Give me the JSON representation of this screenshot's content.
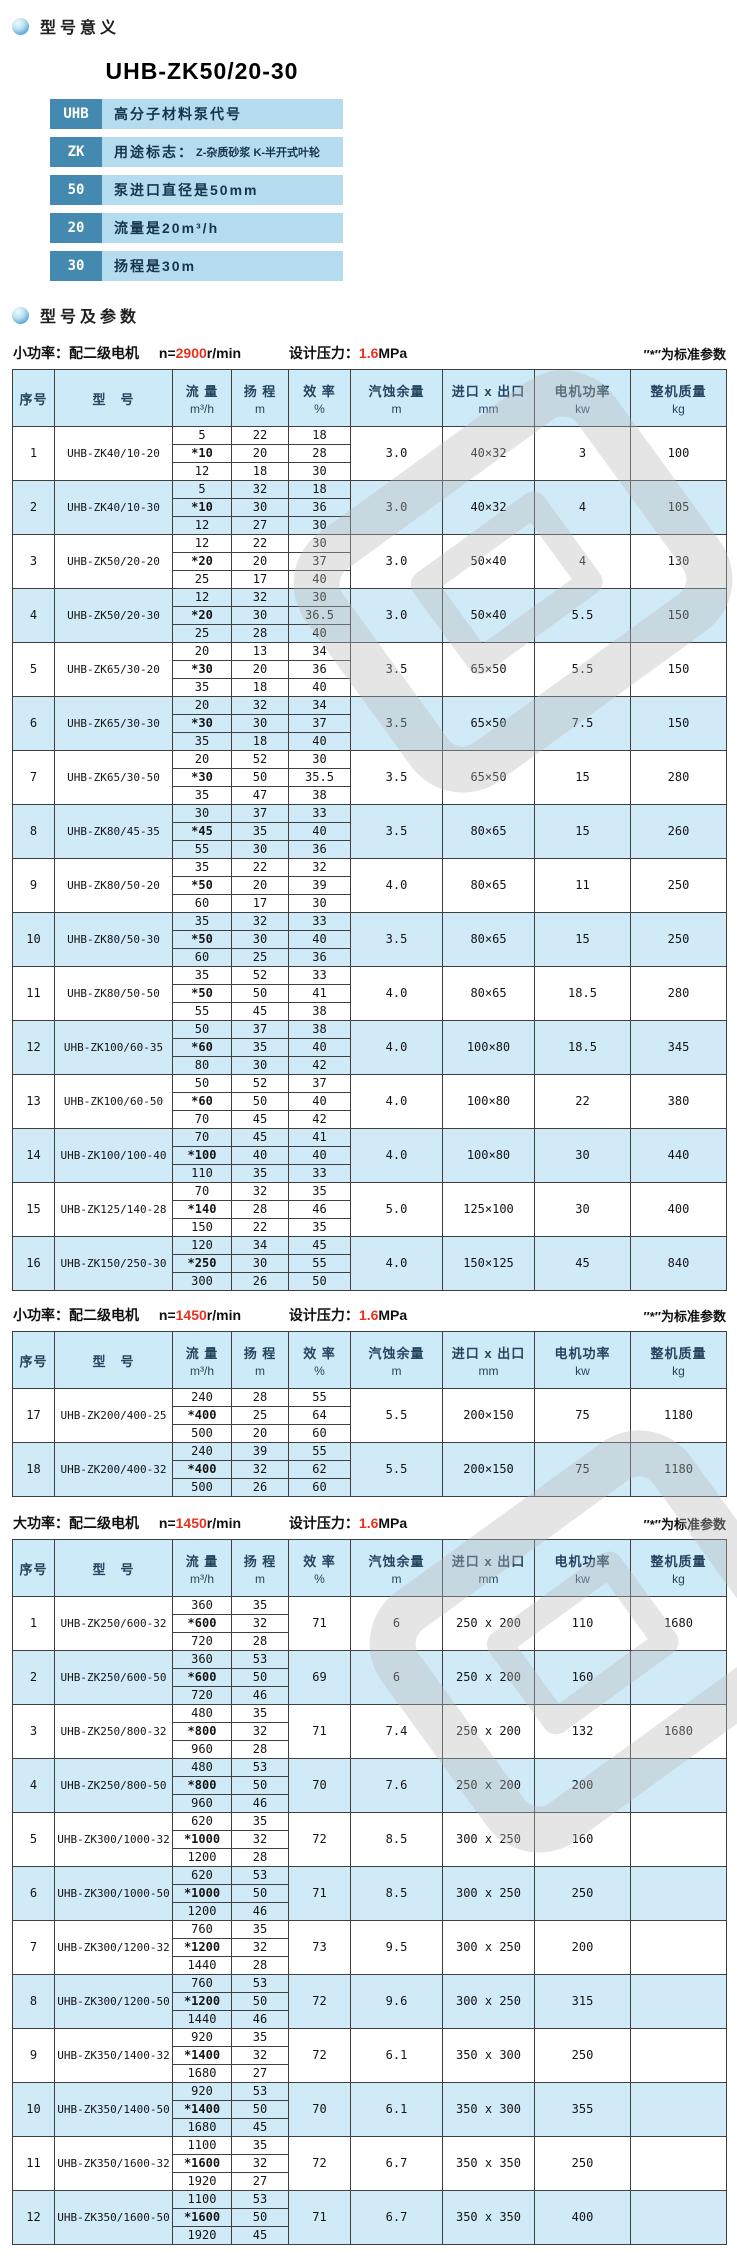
{
  "colors": {
    "accent_red": "#e8321e",
    "header_bg": "#cdeaf8",
    "row_alt_bg": "#d0eaf8",
    "legend_code_bg": "#4389b0",
    "legend_desc_bg": "#b5dcee",
    "table_border": "#3f3f3f"
  },
  "section1_title": "型号意义",
  "model_title": "UHB-ZK50/20-30",
  "legend": {
    "rows": [
      {
        "code": "UHB",
        "desc": "高分子材料泵代号"
      },
      {
        "code": "ZK",
        "desc": "用途标志：",
        "small": "Z-杂质砂浆 K-半开式叶轮"
      },
      {
        "code": "50",
        "desc": "泵进口直径是50mm"
      },
      {
        "code": "20",
        "desc": "流量是20m³/h"
      },
      {
        "code": "30",
        "desc": "扬程是30m"
      }
    ]
  },
  "section2_title": "型号及参数",
  "table_headers": [
    {
      "t": "序号"
    },
    {
      "t": "型　号"
    },
    {
      "t": "流 量",
      "u": "m³/h"
    },
    {
      "t": "扬 程",
      "u": "m"
    },
    {
      "t": "效 率",
      "u": "%"
    },
    {
      "t": "汽蚀余量",
      "u": "m"
    },
    {
      "t": "进口 x 出口",
      "u": "mm"
    },
    {
      "t": "电机功率",
      "u": "kw"
    },
    {
      "t": "整机质量",
      "u": "kg"
    }
  ],
  "tables": [
    {
      "caption": {
        "prefix": "小功率：配二级电机",
        "n_label": "n=",
        "n_value": "2900",
        "n_unit": "r/min",
        "p_label": "设计压力：",
        "p_value": "1.6",
        "p_unit": "MPa",
        "note": "″*″为标准参数"
      },
      "rows": [
        {
          "no": "1",
          "model": "UHB-ZK40/10-20",
          "flow": [
            "5",
            "*10",
            "12"
          ],
          "head": [
            "22",
            "20",
            "18"
          ],
          "eff": [
            "18",
            "28",
            "30"
          ],
          "npsh": "3.0",
          "ports": "40×32",
          "power": "3",
          "weight": "100"
        },
        {
          "no": "2",
          "model": "UHB-ZK40/10-30",
          "flow": [
            "5",
            "*10",
            "12"
          ],
          "head": [
            "32",
            "30",
            "27"
          ],
          "eff": [
            "18",
            "36",
            "30"
          ],
          "npsh": "3.0",
          "ports": "40×32",
          "power": "4",
          "weight": "105"
        },
        {
          "no": "3",
          "model": "UHB-ZK50/20-20",
          "flow": [
            "12",
            "*20",
            "25"
          ],
          "head": [
            "22",
            "20",
            "17"
          ],
          "eff": [
            "30",
            "37",
            "40"
          ],
          "npsh": "3.0",
          "ports": "50×40",
          "power": "4",
          "weight": "130"
        },
        {
          "no": "4",
          "model": "UHB-ZK50/20-30",
          "flow": [
            "12",
            "*20",
            "25"
          ],
          "head": [
            "32",
            "30",
            "28"
          ],
          "eff": [
            "30",
            "36.5",
            "40"
          ],
          "npsh": "3.0",
          "ports": "50×40",
          "power": "5.5",
          "weight": "150"
        },
        {
          "no": "5",
          "model": "UHB-ZK65/30-20",
          "flow": [
            "20",
            "*30",
            "35"
          ],
          "head": [
            "13",
            "20",
            "18"
          ],
          "eff": [
            "34",
            "36",
            "40"
          ],
          "npsh": "3.5",
          "ports": "65×50",
          "power": "5.5",
          "weight": "150"
        },
        {
          "no": "6",
          "model": "UHB-ZK65/30-30",
          "flow": [
            "20",
            "*30",
            "35"
          ],
          "head": [
            "32",
            "30",
            "18"
          ],
          "eff": [
            "34",
            "37",
            "40"
          ],
          "npsh": "3.5",
          "ports": "65×50",
          "power": "7.5",
          "weight": "150"
        },
        {
          "no": "7",
          "model": "UHB-ZK65/30-50",
          "flow": [
            "20",
            "*30",
            "35"
          ],
          "head": [
            "52",
            "50",
            "47"
          ],
          "eff": [
            "30",
            "35.5",
            "38"
          ],
          "npsh": "3.5",
          "ports": "65×50",
          "power": "15",
          "weight": "280"
        },
        {
          "no": "8",
          "model": "UHB-ZK80/45-35",
          "flow": [
            "30",
            "*45",
            "55"
          ],
          "head": [
            "37",
            "35",
            "30"
          ],
          "eff": [
            "33",
            "40",
            "36"
          ],
          "npsh": "3.5",
          "ports": "80×65",
          "power": "15",
          "weight": "260"
        },
        {
          "no": "9",
          "model": "UHB-ZK80/50-20",
          "flow": [
            "35",
            "*50",
            "60"
          ],
          "head": [
            "22",
            "20",
            "17"
          ],
          "eff": [
            "32",
            "39",
            "30"
          ],
          "npsh": "4.0",
          "ports": "80×65",
          "power": "11",
          "weight": "250"
        },
        {
          "no": "10",
          "model": "UHB-ZK80/50-30",
          "flow": [
            "35",
            "*50",
            "60"
          ],
          "head": [
            "32",
            "30",
            "25"
          ],
          "eff": [
            "33",
            "40",
            "36"
          ],
          "npsh": "3.5",
          "ports": "80×65",
          "power": "15",
          "weight": "250"
        },
        {
          "no": "11",
          "model": "UHB-ZK80/50-50",
          "flow": [
            "35",
            "*50",
            "55"
          ],
          "head": [
            "52",
            "50",
            "45"
          ],
          "eff": [
            "33",
            "41",
            "38"
          ],
          "npsh": "4.0",
          "ports": "80×65",
          "power": "18.5",
          "weight": "280"
        },
        {
          "no": "12",
          "model": "UHB-ZK100/60-35",
          "flow": [
            "50",
            "*60",
            "80"
          ],
          "head": [
            "37",
            "35",
            "30"
          ],
          "eff": [
            "38",
            "40",
            "42"
          ],
          "npsh": "4.0",
          "ports": "100×80",
          "power": "18.5",
          "weight": "345"
        },
        {
          "no": "13",
          "model": "UHB-ZK100/60-50",
          "flow": [
            "50",
            "*60",
            "70"
          ],
          "head": [
            "52",
            "50",
            "45"
          ],
          "eff": [
            "37",
            "40",
            "42"
          ],
          "npsh": "4.0",
          "ports": "100×80",
          "power": "22",
          "weight": "380"
        },
        {
          "no": "14",
          "model": "UHB-ZK100/100-40",
          "flow": [
            "70",
            "*100",
            "110"
          ],
          "head": [
            "45",
            "40",
            "35"
          ],
          "eff": [
            "41",
            "40",
            "33"
          ],
          "npsh": "4.0",
          "ports": "100×80",
          "power": "30",
          "weight": "440"
        },
        {
          "no": "15",
          "model": "UHB-ZK125/140-28",
          "flow": [
            "70",
            "*140",
            "150"
          ],
          "head": [
            "32",
            "28",
            "22"
          ],
          "eff": [
            "35",
            "46",
            "35"
          ],
          "npsh": "5.0",
          "ports": "125×100",
          "power": "30",
          "weight": "400"
        },
        {
          "no": "16",
          "model": "UHB-ZK150/250-30",
          "flow": [
            "120",
            "*250",
            "300"
          ],
          "head": [
            "34",
            "30",
            "26"
          ],
          "eff": [
            "45",
            "55",
            "50"
          ],
          "npsh": "4.0",
          "ports": "150×125",
          "power": "45",
          "weight": "840"
        }
      ]
    },
    {
      "caption": {
        "prefix": "小功率：配二级电机",
        "n_label": "n=",
        "n_value": "1450",
        "n_unit": "r/min",
        "p_label": "设计压力：",
        "p_value": "1.6",
        "p_unit": "MPa",
        "note": "″*″为标准参数"
      },
      "rows": [
        {
          "no": "17",
          "model": "UHB-ZK200/400-25",
          "flow": [
            "240",
            "*400",
            "500"
          ],
          "head": [
            "28",
            "25",
            "20"
          ],
          "eff": [
            "55",
            "64",
            "60"
          ],
          "npsh": "5.5",
          "ports": "200×150",
          "power": "75",
          "weight": "1180"
        },
        {
          "no": "18",
          "model": "UHB-ZK200/400-32",
          "flow": [
            "240",
            "*400",
            "500"
          ],
          "head": [
            "39",
            "32",
            "26"
          ],
          "eff": [
            "55",
            "62",
            "60"
          ],
          "npsh": "5.5",
          "ports": "200×150",
          "power": "75",
          "weight": "1180"
        }
      ]
    },
    {
      "caption": {
        "prefix": "大功率：配二级电机",
        "n_label": "n=",
        "n_value": "1450",
        "n_unit": "r/min",
        "p_label": "设计压力：",
        "p_value": "1.6",
        "p_unit": "MPa",
        "note": "″*″为标准参数"
      },
      "rows": [
        {
          "no": "1",
          "model": "UHB-ZK250/600-32",
          "flow": [
            "360",
            "*600",
            "720"
          ],
          "head": [
            "35",
            "32",
            "28"
          ],
          "eff": "71",
          "npsh": "6",
          "ports": "250 x 200",
          "power": "110",
          "weight": "1680"
        },
        {
          "no": "2",
          "model": "UHB-ZK250/600-50",
          "flow": [
            "360",
            "*600",
            "720"
          ],
          "head": [
            "53",
            "50",
            "46"
          ],
          "eff": "69",
          "npsh": "6",
          "ports": "250 x 200",
          "power": "160",
          "weight": ""
        },
        {
          "no": "3",
          "model": "UHB-ZK250/800-32",
          "flow": [
            "480",
            "*800",
            "960"
          ],
          "head": [
            "35",
            "32",
            "28"
          ],
          "eff": "71",
          "npsh": "7.4",
          "ports": "250 x 200",
          "power": "132",
          "weight": "1680"
        },
        {
          "no": "4",
          "model": "UHB-ZK250/800-50",
          "flow": [
            "480",
            "*800",
            "960"
          ],
          "head": [
            "53",
            "50",
            "46"
          ],
          "eff": "70",
          "npsh": "7.6",
          "ports": "250 x 200",
          "power": "200",
          "weight": ""
        },
        {
          "no": "5",
          "model": "UHB-ZK300/1000-32",
          "flow": [
            "620",
            "*1000",
            "1200"
          ],
          "head": [
            "35",
            "32",
            "28"
          ],
          "eff": "72",
          "npsh": "8.5",
          "ports": "300 x 250",
          "power": "160",
          "weight": ""
        },
        {
          "no": "6",
          "model": "UHB-ZK300/1000-50",
          "flow": [
            "620",
            "*1000",
            "1200"
          ],
          "head": [
            "53",
            "50",
            "46"
          ],
          "eff": "71",
          "npsh": "8.5",
          "ports": "300 x 250",
          "power": "250",
          "weight": ""
        },
        {
          "no": "7",
          "model": "UHB-ZK300/1200-32",
          "flow": [
            "760",
            "*1200",
            "1440"
          ],
          "head": [
            "35",
            "32",
            "28"
          ],
          "eff": "73",
          "npsh": "9.5",
          "ports": "300 x 250",
          "power": "200",
          "weight": ""
        },
        {
          "no": "8",
          "model": "UHB-ZK300/1200-50",
          "flow": [
            "760",
            "*1200",
            "1440"
          ],
          "head": [
            "53",
            "50",
            "46"
          ],
          "eff": "72",
          "npsh": "9.6",
          "ports": "300 x 250",
          "power": "315",
          "weight": ""
        },
        {
          "no": "9",
          "model": "UHB-ZK350/1400-32",
          "flow": [
            "920",
            "*1400",
            "1680"
          ],
          "head": [
            "35",
            "32",
            "27"
          ],
          "eff": "72",
          "npsh": "6.1",
          "ports": "350 x 300",
          "power": "250",
          "weight": ""
        },
        {
          "no": "10",
          "model": "UHB-ZK350/1400-50",
          "flow": [
            "920",
            "*1400",
            "1680"
          ],
          "head": [
            "53",
            "50",
            "45"
          ],
          "eff": "70",
          "npsh": "6.1",
          "ports": "350 x 300",
          "power": "355",
          "weight": ""
        },
        {
          "no": "11",
          "model": "UHB-ZK350/1600-32",
          "flow": [
            "1100",
            "*1600",
            "1920"
          ],
          "head": [
            "35",
            "32",
            "27"
          ],
          "eff": "72",
          "npsh": "6.7",
          "ports": "350 x 350",
          "power": "250",
          "weight": ""
        },
        {
          "no": "12",
          "model": "UHB-ZK350/1600-50",
          "flow": [
            "1100",
            "*1600",
            "1920"
          ],
          "head": [
            "53",
            "50",
            "45"
          ],
          "eff": "71",
          "npsh": "6.7",
          "ports": "350 x 350",
          "power": "400",
          "weight": ""
        }
      ]
    }
  ]
}
